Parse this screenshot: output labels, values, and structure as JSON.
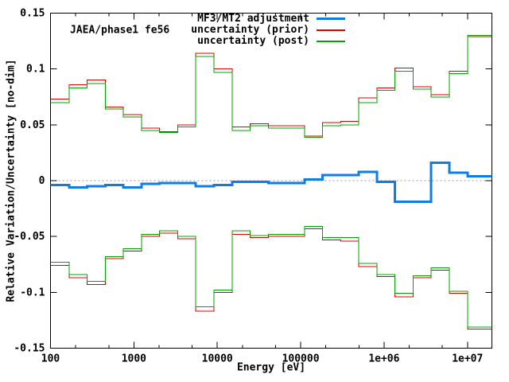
{
  "chart_data": {
    "type": "step-line",
    "annotation": "JAEA/phase1 fe56",
    "xlabel": "Energy [eV]",
    "ylabel": "Relative Variation/Uncertainty [no-dim]",
    "x_scale": "log",
    "xlim": [
      100,
      19640000
    ],
    "ylim": [
      -0.15,
      0.15
    ],
    "grid": false,
    "legend_position": "top-center",
    "x_ticks": {
      "values": [
        100,
        1000,
        10000,
        100000,
        1000000,
        10000000
      ],
      "labels": [
        "100",
        "1000",
        "10000",
        "100000",
        "1e+06",
        "1e+07"
      ],
      "minor_mantissas": [
        2,
        5
      ]
    },
    "y_ticks": {
      "values": [
        -0.15,
        -0.1,
        -0.05,
        0,
        0.05,
        0.1,
        0.15
      ],
      "labels": [
        "-0.15",
        "-0.1",
        "-0.05",
        "0",
        "0.05",
        "0.1",
        "0.15"
      ]
    },
    "zero_line_color": "#999999",
    "frame_color": "#000000",
    "group_boundaries_eV": [
      100,
      167.02,
      275.36,
      454.0,
      748.52,
      1234.1,
      2034.7,
      3354.6,
      5530.8,
      9118.8,
      15034,
      24788,
      40868,
      67379,
      111090,
      183160,
      301970,
      497870,
      820850,
      1353400,
      2231300,
      3678800,
      6065300,
      10000000,
      19640000
    ],
    "series": [
      {
        "name": "MF3/MT2 adjustment",
        "color": "#0f7ce8",
        "line_width": 3,
        "values": [
          -0.004,
          -0.006,
          -0.005,
          -0.004,
          -0.006,
          -0.003,
          -0.002,
          -0.002,
          -0.005,
          -0.004,
          -0.001,
          -0.001,
          -0.002,
          -0.002,
          0.001,
          0.005,
          0.005,
          0.008,
          -0.001,
          -0.019,
          -0.019,
          0.016,
          0.007,
          0.004
        ]
      },
      {
        "name": "uncertainty (prior)",
        "color": "#dd0000",
        "line_width": 1,
        "upper": [
          0.073,
          0.086,
          0.09,
          0.066,
          0.059,
          0.047,
          0.044,
          0.05,
          0.114,
          0.1,
          0.048,
          0.051,
          0.049,
          0.049,
          0.04,
          0.052,
          0.053,
          0.074,
          0.083,
          0.101,
          0.084,
          0.077,
          0.098,
          0.129
        ],
        "lower": [
          -0.076,
          -0.087,
          -0.093,
          -0.07,
          -0.063,
          -0.05,
          -0.047,
          -0.052,
          -0.117,
          -0.1,
          -0.048,
          -0.051,
          -0.05,
          -0.05,
          -0.043,
          -0.053,
          -0.054,
          -0.077,
          -0.086,
          -0.104,
          -0.087,
          -0.08,
          -0.101,
          -0.133
        ]
      },
      {
        "name": "uncertainty (post)",
        "color": "#00a400",
        "line_width": 1,
        "upper": [
          0.07,
          0.083,
          0.087,
          0.064,
          0.057,
          0.045,
          0.043,
          0.048,
          0.111,
          0.097,
          0.045,
          0.049,
          0.047,
          0.047,
          0.039,
          0.049,
          0.05,
          0.07,
          0.081,
          0.098,
          0.082,
          0.075,
          0.096,
          0.13
        ],
        "lower": [
          -0.073,
          -0.084,
          -0.09,
          -0.068,
          -0.061,
          -0.048,
          -0.045,
          -0.05,
          -0.113,
          -0.098,
          -0.045,
          -0.049,
          -0.048,
          -0.048,
          -0.041,
          -0.051,
          -0.051,
          -0.074,
          -0.084,
          -0.101,
          -0.085,
          -0.078,
          -0.099,
          -0.131
        ]
      }
    ]
  }
}
